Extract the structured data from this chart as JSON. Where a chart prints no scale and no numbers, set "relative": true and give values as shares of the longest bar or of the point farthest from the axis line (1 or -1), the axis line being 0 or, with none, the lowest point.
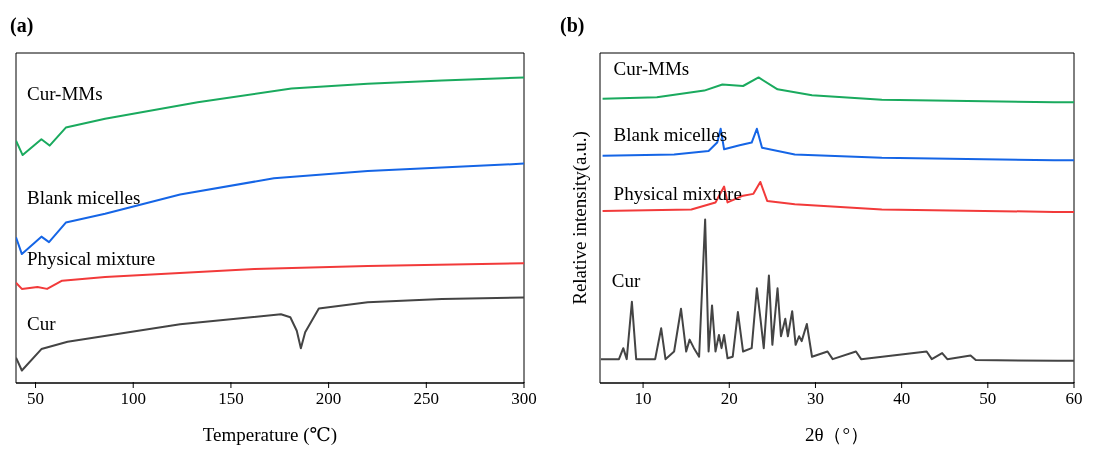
{
  "chart_data": [
    {
      "type": "line",
      "title": "(a)",
      "xlabel": "Temperature (℃)",
      "relative": true,
      "xlim": [
        40,
        300
      ],
      "xticks": [
        50,
        100,
        150,
        200,
        250,
        300
      ],
      "grid": false,
      "legend": false,
      "marker": "none",
      "line_style": "solid",
      "tick_labels": "x",
      "series": [
        {
          "name": "Cur-MMs",
          "color": "#1aaa5e",
          "x": [
            40,
            43.4,
            53,
            57.2,
            65.5,
            85.6,
            133,
            181,
            220,
            258,
            300
          ],
          "values": [
            0.793,
            0.746,
            0.798,
            0.777,
            0.836,
            0.865,
            0.919,
            0.964,
            0.979,
            0.99,
            1
          ]
        },
        {
          "name": "Blank micelles",
          "color": "#1565e6",
          "x": [
            40,
            43,
            53,
            56.9,
            65.5,
            85.6,
            124,
            172,
            220,
            258,
            300
          ],
          "values": [
            0.477,
            0.422,
            0.479,
            0.461,
            0.525,
            0.554,
            0.617,
            0.67,
            0.694,
            0.705,
            0.718
          ]
        },
        {
          "name": "Physical mixture",
          "color": "#f23a3a",
          "x": [
            40,
            43,
            51,
            55.9,
            63.6,
            85.6,
            162,
            220,
            300
          ],
          "values": [
            0.328,
            0.308,
            0.314,
            0.308,
            0.335,
            0.347,
            0.373,
            0.383,
            0.392
          ]
        },
        {
          "name": "Cur",
          "color": "#444444",
          "x": [
            40,
            43,
            53,
            66.4,
            124,
            175.6,
            180.4,
            183.7,
            185.8,
            188,
            195,
            220,
            258,
            300
          ],
          "values": [
            0.083,
            0.041,
            0.111,
            0.135,
            0.192,
            0.225,
            0.215,
            0.171,
            0.114,
            0.166,
            0.244,
            0.264,
            0.275,
            0.28
          ]
        }
      ]
    },
    {
      "type": "line",
      "title": "(b)",
      "xlabel": "2θ（°）",
      "ylabel": "Relative intensity(a.u.)",
      "relative": true,
      "xlim": [
        5,
        60
      ],
      "xticks": [
        10,
        20,
        30,
        40,
        50,
        60
      ],
      "grid": false,
      "legend": false,
      "marker": "none",
      "line_style": "solid",
      "tick_labels": "x",
      "series": [
        {
          "name": "Cur-MMs",
          "color": "#1aaa5e",
          "x": [
            5.3,
            11.6,
            17.1,
            19.2,
            21.6,
            23.4,
            25.6,
            29.6,
            37.7,
            45.7,
            57.7,
            60
          ],
          "values": [
            0.93,
            0.935,
            0.957,
            0.977,
            0.972,
            1,
            0.961,
            0.942,
            0.927,
            0.924,
            0.919,
            0.919
          ]
        },
        {
          "name": "Blank micelles",
          "color": "#1565e6",
          "x": [
            5.3,
            13.6,
            17.6,
            18.6,
            19.0,
            19.4,
            21.2,
            22.6,
            23.2,
            23.8,
            27.6,
            37.7,
            57.7,
            60
          ],
          "values": [
            0.744,
            0.748,
            0.759,
            0.787,
            0.832,
            0.765,
            0.778,
            0.787,
            0.832,
            0.77,
            0.748,
            0.737,
            0.729,
            0.729
          ]
        },
        {
          "name": "Physical mixture",
          "color": "#f23a3a",
          "x": [
            5.3,
            15.6,
            18.4,
            19.4,
            19.8,
            21.6,
            22.8,
            23.6,
            24.4,
            27.6,
            37.7,
            57.7,
            60
          ],
          "values": [
            0.563,
            0.568,
            0.591,
            0.643,
            0.591,
            0.613,
            0.619,
            0.658,
            0.596,
            0.585,
            0.568,
            0.56,
            0.56
          ]
        },
        {
          "name": "Cur",
          "color": "#444444",
          "x": [
            5.1,
            7.2,
            7.7,
            8.1,
            8.7,
            9.2,
            11.4,
            12.1,
            12.6,
            13.6,
            14.4,
            15.0,
            15.4,
            15.9,
            16.5,
            17.2,
            17.6,
            18.0,
            18.4,
            18.8,
            19.1,
            19.4,
            19.8,
            20.4,
            21.0,
            21.6,
            22.6,
            23.2,
            23.6,
            24.0,
            24.6,
            25.0,
            25.6,
            26.0,
            26.5,
            26.8,
            27.3,
            27.7,
            28.1,
            28.4,
            29.0,
            29.6,
            31.4,
            32.0,
            34.7,
            35.3,
            42.9,
            43.5,
            44.7,
            45.3,
            48.0,
            48.6,
            58.1,
            60
          ],
          "values": [
            0.078,
            0.078,
            0.114,
            0.078,
            0.266,
            0.078,
            0.078,
            0.179,
            0.078,
            0.103,
            0.243,
            0.103,
            0.142,
            0.114,
            0.086,
            0.535,
            0.103,
            0.254,
            0.103,
            0.157,
            0.114,
            0.157,
            0.081,
            0.086,
            0.232,
            0.103,
            0.114,
            0.31,
            0.215,
            0.114,
            0.352,
            0.125,
            0.31,
            0.153,
            0.21,
            0.153,
            0.235,
            0.125,
            0.153,
            0.137,
            0.193,
            0.086,
            0.103,
            0.078,
            0.103,
            0.078,
            0.103,
            0.078,
            0.098,
            0.078,
            0.09,
            0.075,
            0.073,
            0.073
          ]
        }
      ]
    }
  ]
}
